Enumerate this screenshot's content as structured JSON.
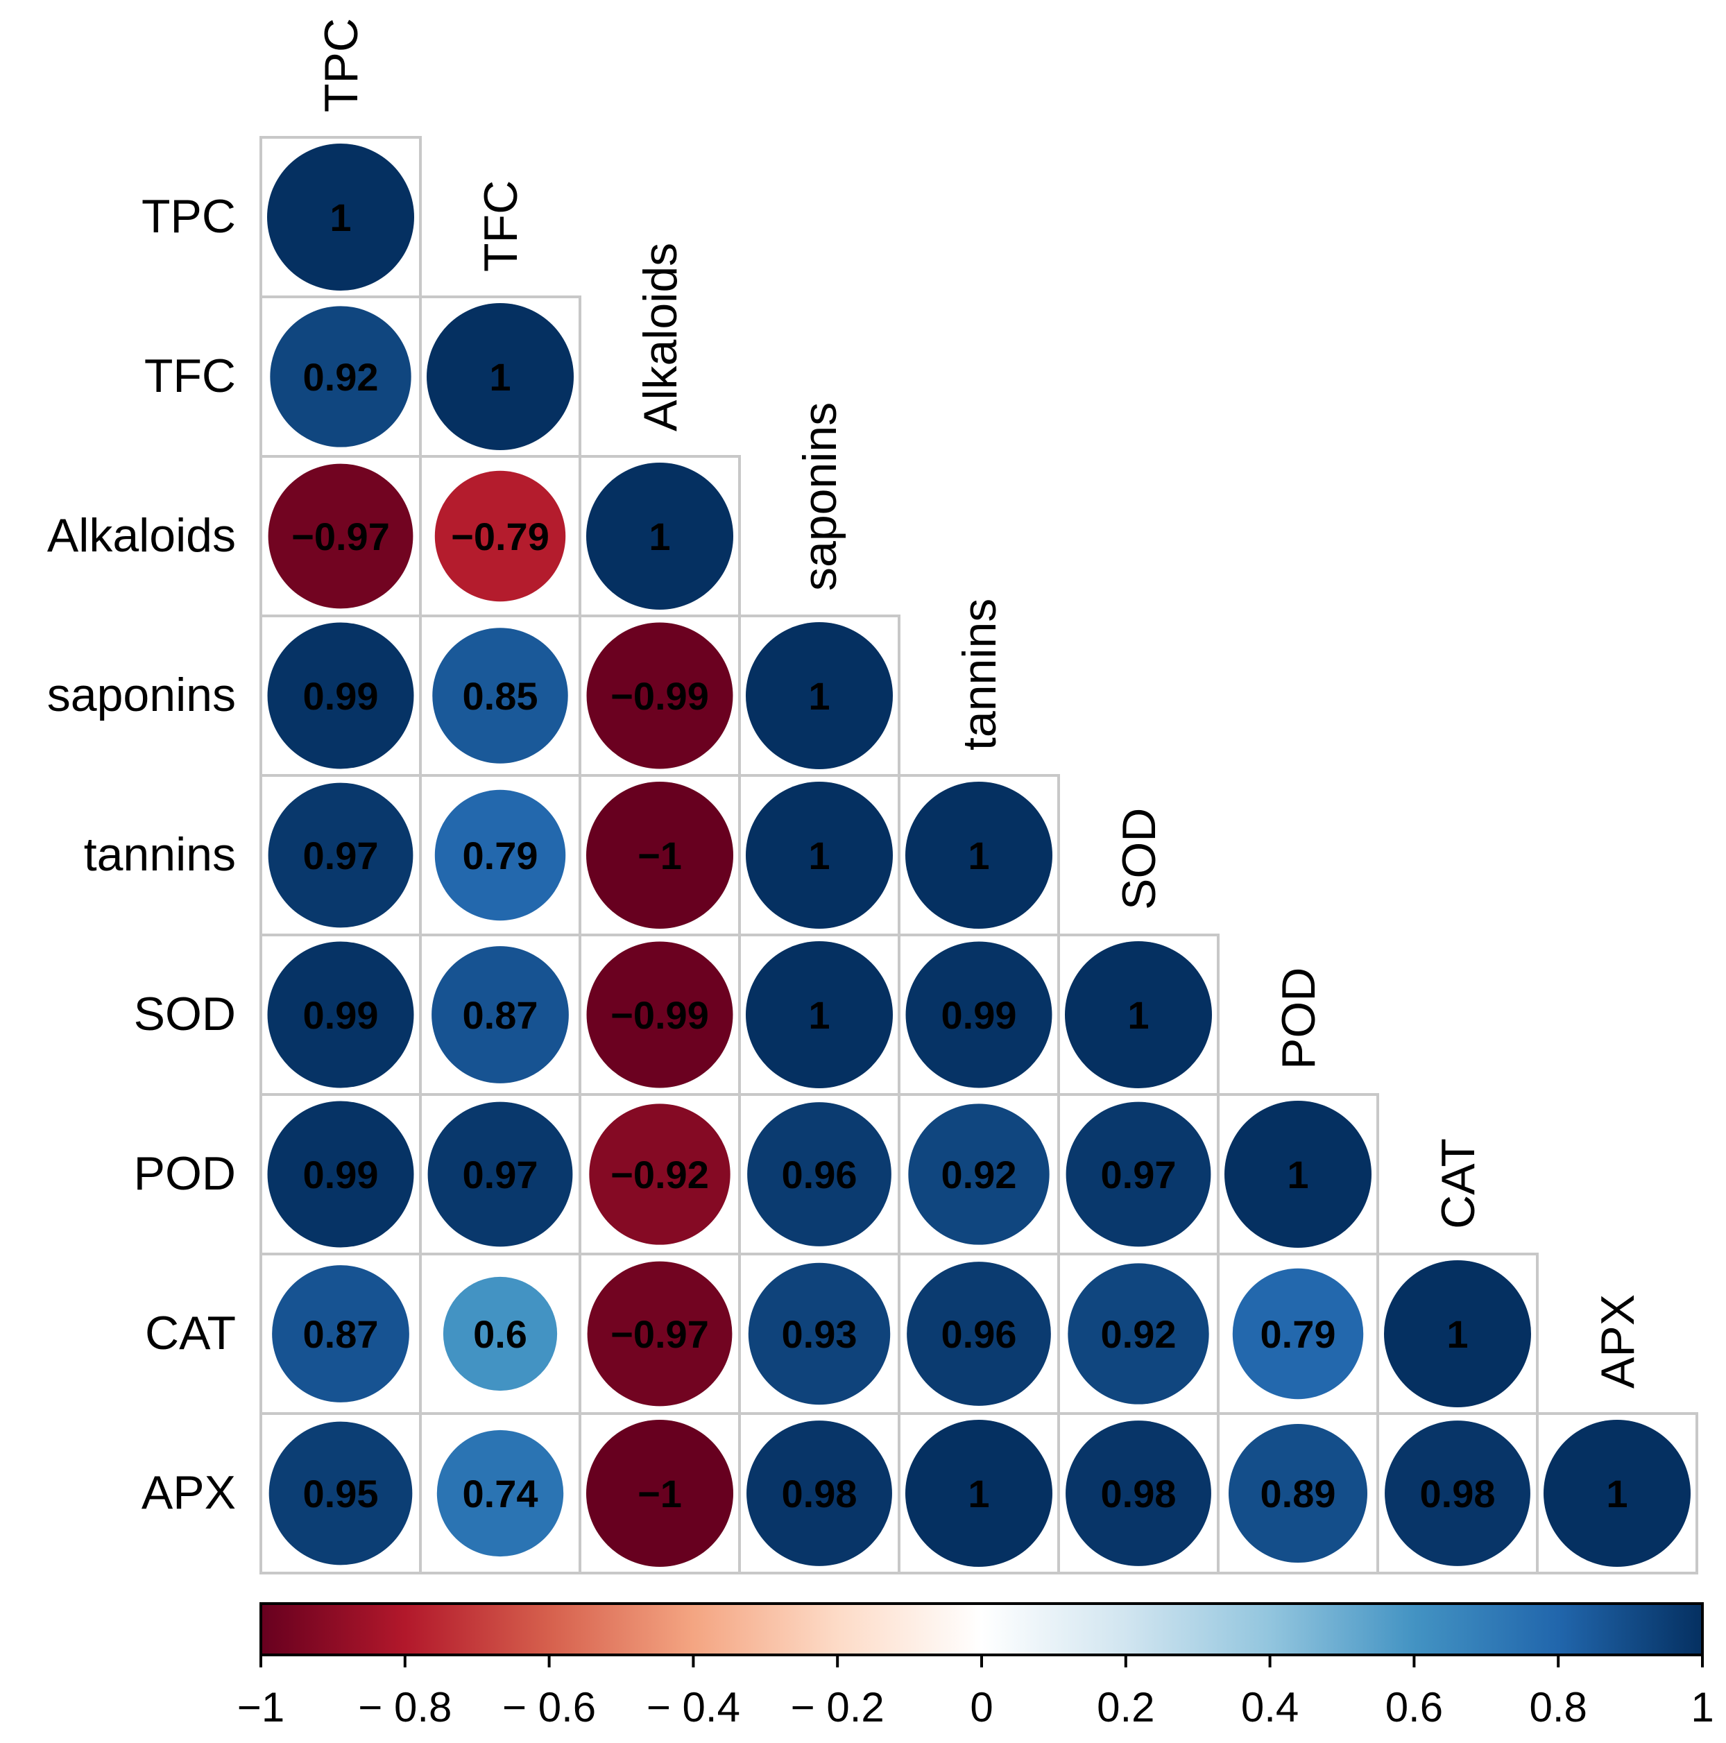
{
  "chart_data": {
    "type": "heatmap",
    "style": "correlation-circles-lower-triangle",
    "variables": [
      "TPC",
      "TFC",
      "Alkaloids",
      "saponins",
      "tannins",
      "SOD",
      "POD",
      "CAT",
      "APX"
    ],
    "matrix": [
      [
        1
      ],
      [
        0.92,
        1
      ],
      [
        -0.97,
        -0.79,
        1
      ],
      [
        0.99,
        0.85,
        -0.99,
        1
      ],
      [
        0.97,
        0.79,
        -1,
        1,
        1
      ],
      [
        0.99,
        0.87,
        -0.99,
        1,
        0.99,
        1
      ],
      [
        0.99,
        0.97,
        -0.92,
        0.96,
        0.92,
        0.97,
        1
      ],
      [
        0.87,
        0.6,
        -0.97,
        0.93,
        0.96,
        0.92,
        0.79,
        1
      ],
      [
        0.95,
        0.74,
        -1,
        0.98,
        1,
        0.98,
        0.89,
        0.98,
        1
      ]
    ],
    "value_labels": [
      [
        "1"
      ],
      [
        "0.92",
        "1"
      ],
      [
        "−0.97",
        "−0.79",
        "1"
      ],
      [
        "0.99",
        "0.85",
        "−0.99",
        "1"
      ],
      [
        "0.97",
        "0.79",
        "−1",
        "1",
        "1"
      ],
      [
        "0.99",
        "0.87",
        "−0.99",
        "1",
        "0.99",
        "1"
      ],
      [
        "0.99",
        "0.97",
        "−0.92",
        "0.96",
        "0.92",
        "0.97",
        "1"
      ],
      [
        "0.87",
        "0.6",
        "−0.97",
        "0.93",
        "0.96",
        "0.92",
        "0.79",
        "1"
      ],
      [
        "0.95",
        "0.74",
        "−1",
        "0.98",
        "1",
        "0.98",
        "0.89",
        "0.98",
        "1"
      ]
    ],
    "colorbar": {
      "range": [
        -1,
        1
      ],
      "ticks": [
        -1,
        -0.8,
        -0.6,
        -0.4,
        -0.2,
        0,
        0.2,
        0.4,
        0.6,
        0.8,
        1
      ],
      "tick_labels": [
        "−1",
        "− 0.8",
        "− 0.6",
        "− 0.4",
        "− 0.2",
        "0",
        "0.2",
        "0.4",
        "0.6",
        "0.8",
        "1"
      ],
      "colors": [
        "#67001F",
        "#B2182B",
        "#D6604D",
        "#F4A582",
        "#FDDBC7",
        "#FFFFFF",
        "#D1E5F0",
        "#92C5DE",
        "#4393C3",
        "#2166AC",
        "#053061"
      ],
      "placement": "bottom"
    }
  }
}
